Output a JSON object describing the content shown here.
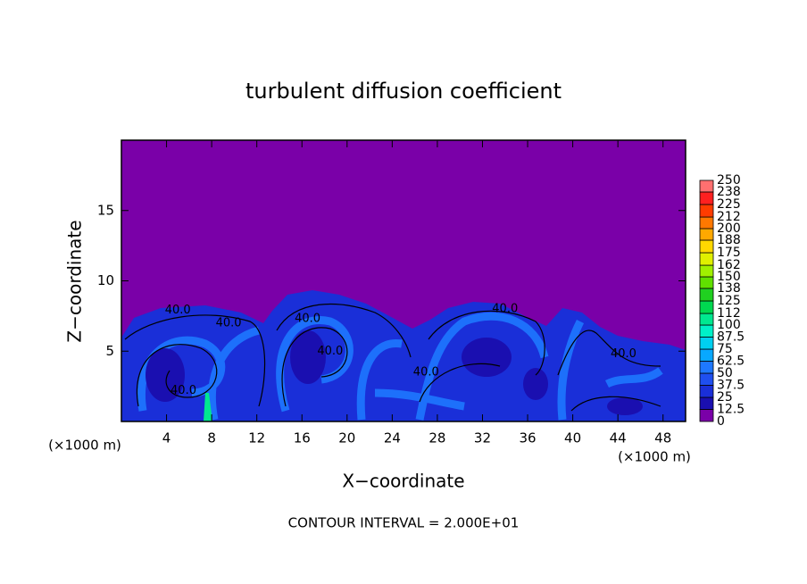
{
  "chart_data": {
    "type": "contour",
    "title": "turbulent diffusion coefficient",
    "xlabel": "X−coordinate",
    "ylabel": "Z−coordinate",
    "x_unit_left": "(×1000 m)",
    "x_unit_right": "(×1000 m)",
    "xlim": [
      0,
      50
    ],
    "ylim": [
      0,
      20
    ],
    "xticks": [
      4,
      8,
      12,
      16,
      20,
      24,
      28,
      32,
      36,
      40,
      44,
      48
    ],
    "yticks": [
      5,
      10,
      15
    ],
    "colorbar": {
      "levels": [
        0,
        12.5,
        25,
        37.5,
        50,
        62.5,
        75,
        87.5,
        100,
        112,
        125,
        138,
        150,
        162,
        175,
        188,
        200,
        212,
        225,
        238,
        250
      ],
      "colors": [
        "#7a00a8",
        "#1a0fb0",
        "#1a2fd8",
        "#1f4ff0",
        "#1e78ff",
        "#08a8ff",
        "#00d0f0",
        "#00f0c8",
        "#00e890",
        "#00d850",
        "#20d020",
        "#60e000",
        "#a0f000",
        "#e0f000",
        "#ffd800",
        "#ffa800",
        "#ff7800",
        "#ff3c00",
        "#ff2020",
        "#ff7070"
      ]
    },
    "contour_labels": [
      {
        "value": 40,
        "label": "40.0",
        "x": 5,
        "z": 7.9
      },
      {
        "value": 40,
        "label": "40.0",
        "x": 9.5,
        "z": 7.0
      },
      {
        "value": 40,
        "label": "40.0",
        "x": 16.5,
        "z": 7.3
      },
      {
        "value": 40,
        "label": "40.0",
        "x": 18.5,
        "z": 5.0
      },
      {
        "value": 40,
        "label": "40.0",
        "x": 5.5,
        "z": 2.2
      },
      {
        "value": 40,
        "label": "40.0",
        "x": 34,
        "z": 8.0
      },
      {
        "value": 40,
        "label": "40.0",
        "x": 27,
        "z": 3.5
      },
      {
        "value": 40,
        "label": "40.0",
        "x": 44.5,
        "z": 4.8
      }
    ],
    "footnote": "CONTOUR INTERVAL = 2.000E+01"
  }
}
